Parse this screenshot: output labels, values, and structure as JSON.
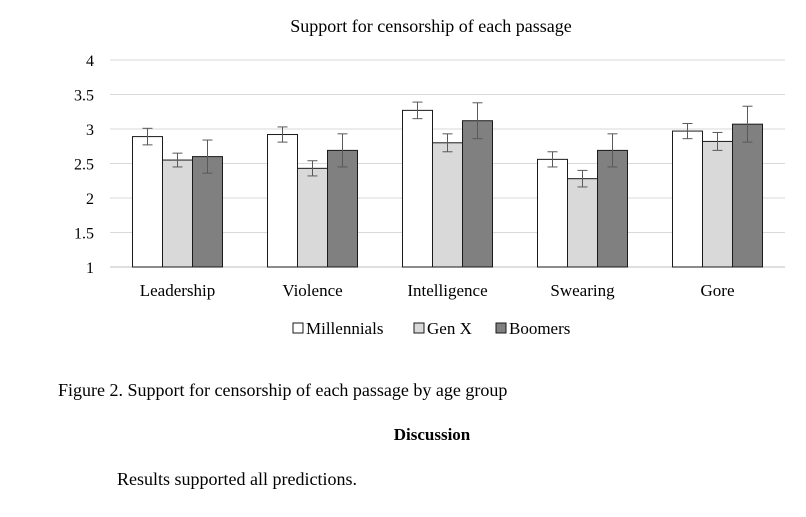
{
  "chart_data": {
    "type": "bar",
    "title": "Support for censorship of each passage",
    "categories": [
      "Leadership",
      "Violence",
      "Intelligence",
      "Swearing",
      "Gore"
    ],
    "series": [
      {
        "name": "Millennials",
        "color": "#ffffff",
        "values": [
          2.89,
          2.92,
          3.27,
          2.56,
          2.97
        ],
        "error": [
          0.12,
          0.11,
          0.12,
          0.11,
          0.11
        ]
      },
      {
        "name": "Gen X",
        "color": "#d9d9d9",
        "values": [
          2.55,
          2.43,
          2.8,
          2.28,
          2.82
        ],
        "error": [
          0.1,
          0.11,
          0.13,
          0.12,
          0.13
        ]
      },
      {
        "name": "Boomers",
        "color": "#808080",
        "values": [
          2.6,
          2.69,
          3.12,
          2.69,
          3.07
        ],
        "error": [
          0.24,
          0.24,
          0.26,
          0.24,
          0.26
        ]
      }
    ],
    "yticks": [
      "1",
      "1.5",
      "2",
      "2.5",
      "3",
      "3.5",
      "4"
    ],
    "ylim": [
      1,
      4
    ],
    "xlabel": "",
    "ylabel": "",
    "grid": true,
    "legend": "bottom"
  },
  "caption": "Figure 2. Support for censorship of each passage by age group",
  "section_heading": "Discussion",
  "body_text": "Results supported all predictions."
}
